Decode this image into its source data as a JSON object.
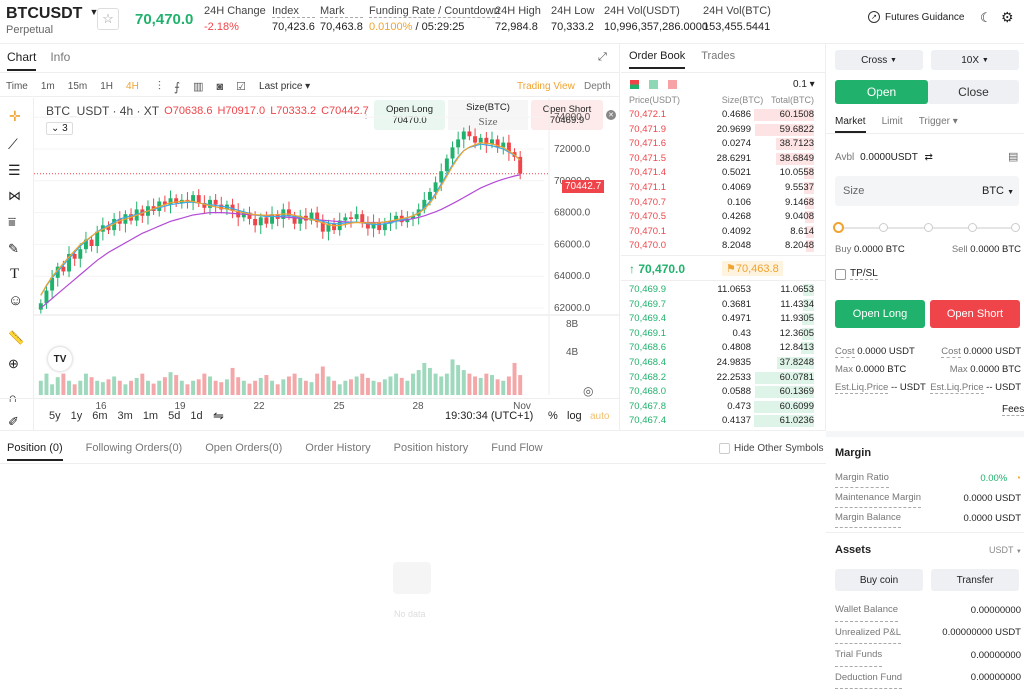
{
  "header": {
    "symbol": "BTCUSDT",
    "type": "Perpetual",
    "price": "70,470.0",
    "stats": [
      {
        "label": "24H Change",
        "value": "-2.18%"
      },
      {
        "label": "Index",
        "value": "70,423.6"
      },
      {
        "label": "Mark",
        "value": "70,463.8"
      },
      {
        "label": "Funding Rate / Countdown",
        "value_a": "0.0100%",
        "value_b": "05:29:25"
      },
      {
        "label": "24H High",
        "value": "72,984.8"
      },
      {
        "label": "24H Low",
        "value": "70,333.2"
      },
      {
        "label": "24H Vol(USDT)",
        "value": "10,996,357,286.0000"
      },
      {
        "label": "24H Vol(BTC)",
        "value": "153,455.5441"
      }
    ],
    "futures_guidance": "Futures Guidance"
  },
  "chart_panel": {
    "tabs": [
      "Chart",
      "Info"
    ],
    "intervals": [
      "Time",
      "1m",
      "15m",
      "1H",
      "4H"
    ],
    "last_price": "Last price",
    "trading_view": "Trading View",
    "depth": "Depth",
    "ohlc": {
      "title": "BTC_USDT · 4h · XT",
      "o": "O70638.6",
      "h": "H70917.0",
      "l": "L70333.2",
      "c": "C70442.7"
    },
    "indicator_count": "3",
    "quick_trade": {
      "open_long": "Open Long",
      "long_price": "70470.0",
      "size_label": "Size(BTC)",
      "size_placeholder": "Size",
      "open_short": "Open Short",
      "short_price": "70469.9"
    },
    "price_tag": "70442.7",
    "range_buttons": [
      "5y",
      "1y",
      "6m",
      "3m",
      "1m",
      "5d",
      "1d"
    ],
    "clock": "19:30:34 (UTC+1)",
    "percent": "%",
    "log": "log",
    "auto": "auto"
  },
  "chart_data": {
    "type": "candlestick",
    "y_ticks": [
      "74000.0",
      "72000.0",
      "70000.0",
      "68000.0",
      "66000.0",
      "64000.0",
      "62000.0"
    ],
    "ylim": [
      61500,
      74700
    ],
    "x_ticks": [
      "16",
      "19",
      "22",
      "25",
      "28",
      "Nov"
    ],
    "volume_ticks": [
      "8B",
      "4B"
    ],
    "last_price": 70442.7,
    "closes": [
      62300,
      63100,
      63900,
      64600,
      64300,
      65400,
      65100,
      65700,
      66300,
      65900,
      66800,
      67200,
      66900,
      67600,
      67300,
      67900,
      67500,
      68200,
      67800,
      68400,
      68100,
      68700,
      68500,
      68900,
      68600,
      68800,
      68700,
      69100,
      68600,
      68300,
      68800,
      68500,
      68200,
      68500,
      68100,
      67700,
      68000,
      67600,
      67200,
      67700,
      67300,
      67900,
      67600,
      68200,
      67800,
      67300,
      67800,
      67500,
      68000,
      67400,
      66800,
      67300,
      66900,
      67500,
      67700,
      67600,
      67900,
      67400,
      67000,
      67400,
      66900,
      67300,
      67500,
      67800,
      67400,
      67600,
      67800,
      68200,
      68800,
      69300,
      69900,
      70600,
      71400,
      72100,
      72600,
      73100,
      72800,
      72400,
      72700,
      72300,
      72600,
      72100,
      72400,
      71800,
      71500,
      70442.7
    ],
    "ma_fast": [
      62800,
      63400,
      63900,
      64300,
      64700,
      65100,
      65500,
      65900,
      66200,
      66500,
      66800,
      67000,
      67200,
      67400,
      67600,
      67700,
      67800,
      67900,
      68000,
      68100,
      68200,
      68300,
      68400,
      68500,
      68550,
      68600,
      68650,
      68650,
      68600,
      68550,
      68500,
      68450,
      68400,
      68350,
      68250,
      68150,
      68050,
      67950,
      67850,
      67800,
      67750,
      67750,
      67750,
      67800,
      67800,
      67750,
      67700,
      67650,
      67600,
      67550,
      67450,
      67350,
      67300,
      67300,
      67350,
      67400,
      67400,
      67350,
      67300,
      67250,
      67250,
      67300,
      67350,
      67450,
      67550,
      67650,
      67800,
      68000,
      68300,
      68700,
      69200,
      69800,
      70400,
      71000,
      71500,
      71900,
      72100,
      72200,
      72300,
      72250,
      72200,
      72100,
      72000,
      71800,
      71600,
      71300
    ],
    "ma_slow": [
      62000,
      62300,
      62600,
      62900,
      63200,
      63500,
      63800,
      64100,
      64400,
      64700,
      65000,
      65250,
      65500,
      65700,
      65900,
      66100,
      66300,
      66500,
      66700,
      66850,
      67000,
      67150,
      67300,
      67450,
      67550,
      67650,
      67750,
      67850,
      67900,
      67950,
      68000,
      68000,
      68000,
      67980,
      67950,
      67920,
      67900,
      67870,
      67850,
      67820,
      67800,
      67770,
      67750,
      67720,
      67700,
      67670,
      67640,
      67610,
      67580,
      67550,
      67520,
      67490,
      67460,
      67430,
      67420,
      67400,
      67390,
      67380,
      67380,
      67380,
      67380,
      67400,
      67430,
      67460,
      67500,
      67550,
      67620,
      67700,
      67800,
      67920,
      68050,
      68200,
      68380,
      68560,
      68750,
      68950,
      69150,
      69350,
      69550,
      69700,
      69850,
      69980,
      70100,
      70200,
      70300,
      70380
    ],
    "volume": [
      2,
      3,
      1.5,
      2.5,
      3,
      2,
      1.5,
      2,
      3,
      2.5,
      2,
      1.8,
      2.2,
      2.6,
      2,
      1.5,
      2,
      2.4,
      3,
      2,
      1.6,
      2,
      2.5,
      3.2,
      2.8,
      2,
      1.5,
      2,
      2.2,
      3,
      2.6,
      2,
      1.8,
      2.2,
      3.8,
      2.5,
      2,
      1.6,
      2,
      2.4,
      2.8,
      2,
      1.5,
      2.2,
      2.6,
      3,
      2.4,
      2,
      1.8,
      3,
      4,
      2.6,
      2,
      1.5,
      2,
      2.2,
      2.6,
      3,
      2.4,
      2,
      1.8,
      2.2,
      2.6,
      3,
      2.4,
      2,
      3,
      3.5,
      4.5,
      3.8,
      3,
      2.6,
      3,
      5,
      4.2,
      3.5,
      3,
      2.6,
      2.4,
      3,
      2.8,
      2.2,
      2,
      2.6,
      4.5,
      2.8
    ]
  },
  "order_book": {
    "tabs": [
      "Order Book",
      "Trades"
    ],
    "precision": "0.1",
    "headers": [
      "Price(USDT)",
      "Size(BTC)",
      "Total(BTC)"
    ],
    "asks": [
      [
        "70,472.1",
        "0.4686",
        "60.1508",
        1.0
      ],
      [
        "70,471.9",
        "20.9699",
        "59.6822",
        0.99
      ],
      [
        "70,471.6",
        "0.0274",
        "38.7123",
        0.64
      ],
      [
        "70,471.5",
        "28.6291",
        "38.6849",
        0.64
      ],
      [
        "70,471.4",
        "0.5021",
        "10.0558",
        0.17
      ],
      [
        "70,471.1",
        "0.4069",
        "9.5537",
        0.16
      ],
      [
        "70,470.7",
        "0.106",
        "9.1468",
        0.15
      ],
      [
        "70,470.5",
        "0.4268",
        "9.0408",
        0.15
      ],
      [
        "70,470.1",
        "0.4092",
        "8.614",
        0.14
      ],
      [
        "70,470.0",
        "8.2048",
        "8.2048",
        0.14
      ]
    ],
    "last": "↑ 70,470.0",
    "mark": "70,463.8",
    "bids": [
      [
        "70,469.9",
        "11.0653",
        "11.0653",
        0.18
      ],
      [
        "70,469.7",
        "0.3681",
        "11.4334",
        0.19
      ],
      [
        "70,469.4",
        "0.4971",
        "11.9305",
        0.2
      ],
      [
        "70,469.1",
        "0.43",
        "12.3605",
        0.2
      ],
      [
        "70,468.6",
        "0.4808",
        "12.8413",
        0.21
      ],
      [
        "70,468.4",
        "24.9835",
        "37.8248",
        0.62
      ],
      [
        "70,468.2",
        "22.2533",
        "60.0781",
        0.99
      ],
      [
        "70,468.0",
        "0.0588",
        "60.1369",
        0.99
      ],
      [
        "70,467.8",
        "0.473",
        "60.6099",
        1.0
      ],
      [
        "70,467.4",
        "0.4137",
        "61.0236",
        1.0
      ]
    ]
  },
  "trade_panel": {
    "margin_mode": "Cross",
    "leverage": "10X",
    "open": "Open",
    "close": "Close",
    "order_types": [
      "Market",
      "Limit",
      "Trigger"
    ],
    "avbl": "Avbl",
    "avbl_value": "0.0000USDT",
    "size_label": "Size",
    "size_unit": "BTC",
    "buy_label": "Buy",
    "buy_value": "0.0000 BTC",
    "sell_label": "Sell",
    "sell_value": "0.0000 BTC",
    "tpsl": "TP/SL",
    "open_long": "Open Long",
    "open_short": "Open Short",
    "cost_label": "Cost",
    "cost_value": "0.0000 USDT",
    "max_label": "Max",
    "max_value": "0.0000 BTC",
    "liq_label": "Est.Liq.Price",
    "liq_value": "-- USDT",
    "fees": "Fees"
  },
  "margin": {
    "title": "Margin",
    "ratio_label": "Margin Ratio",
    "ratio_value": "0.00%",
    "maint_label": "Maintenance Margin",
    "maint_value": "0.0000 USDT",
    "balance_label": "Margin Balance",
    "balance_value": "0.0000 USDT"
  },
  "assets": {
    "title": "Assets",
    "currency": "USDT",
    "buy_coin": "Buy coin",
    "transfer": "Transfer",
    "rows": [
      [
        "Wallet Balance",
        "0.00000000"
      ],
      [
        "Unrealized P&L",
        "0.00000000 USDT"
      ],
      [
        "Trial Funds",
        "0.00000000"
      ],
      [
        "Deduction Fund",
        "0.00000000"
      ]
    ]
  },
  "bottom": {
    "tabs": [
      "Position (0)",
      "Following Orders(0)",
      "Open Orders(0)",
      "Order History",
      "Position history",
      "Fund Flow"
    ],
    "hide_other": "Hide Other Symbols",
    "no_data": "No data"
  }
}
